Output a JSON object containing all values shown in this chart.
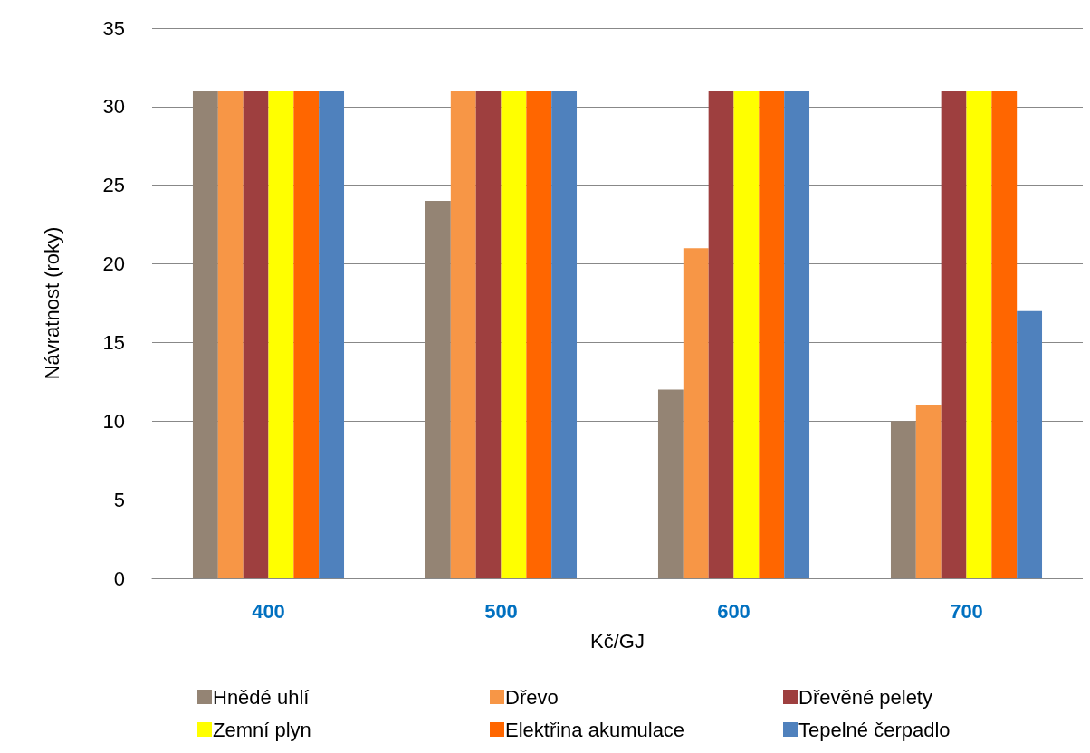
{
  "chart_data": {
    "type": "bar",
    "xlabel": "Kč/GJ",
    "ylabel": "Návratnost (roky)",
    "categories": [
      "400",
      "500",
      "600",
      "700"
    ],
    "series": [
      {
        "name": "Hnědé uhlí",
        "color": "#948474",
        "values": [
          31,
          24,
          12,
          10
        ]
      },
      {
        "name": "Dřevo",
        "color": "#f79646",
        "values": [
          31,
          31,
          21,
          11
        ]
      },
      {
        "name": "Dřevěné pelety",
        "color": "#9e3f3f",
        "values": [
          31,
          31,
          31,
          31
        ]
      },
      {
        "name": "Zemní plyn",
        "color": "#ffff00",
        "values": [
          31,
          31,
          31,
          31
        ]
      },
      {
        "name": "Elektřina akumulace",
        "color": "#ff6600",
        "values": [
          31,
          31,
          31,
          31
        ]
      },
      {
        "name": "Tepelné čerpadlo",
        "color": "#4f81bd",
        "values": [
          31,
          31,
          31,
          17
        ]
      }
    ],
    "ylim": [
      0,
      35
    ],
    "yticks": [
      0,
      5,
      10,
      15,
      20,
      25,
      30,
      35
    ],
    "grid": "y",
    "legend": "bottom"
  }
}
